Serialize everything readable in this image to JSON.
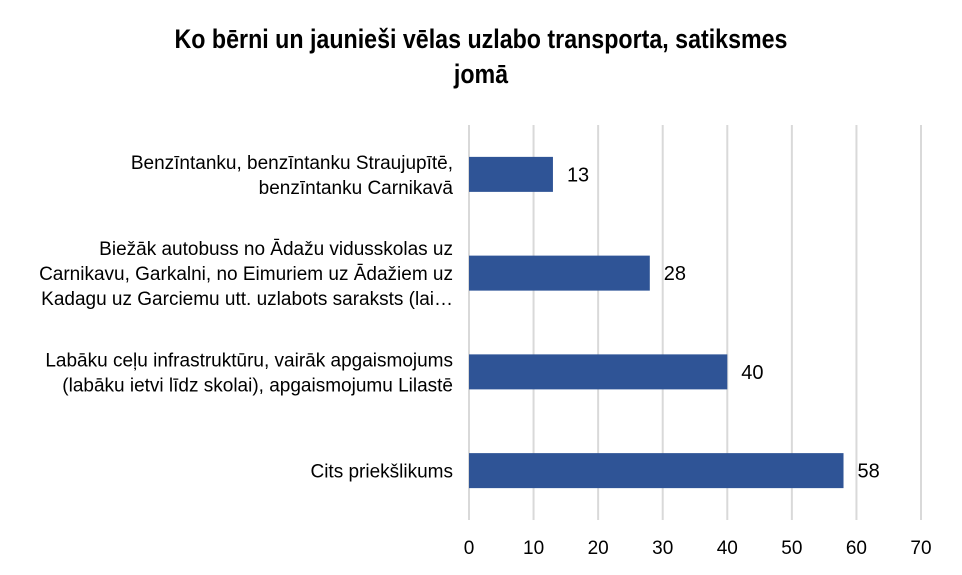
{
  "chart_data": {
    "type": "bar",
    "orientation": "horizontal",
    "title_lines": [
      "Ko bērni un jaunieši vēlas uzlabo transporta, satiksmes",
      "jomā"
    ],
    "categories": [
      [
        "Benzīntanku, benzīntanku Straujupītē,",
        "benzīntanku Carnikavā"
      ],
      [
        "Biežāk autobuss no Ādažu vidusskolas uz",
        "Carnikavu, Garkalni, no Eimuriem uz Ādažiem uz",
        "Kadagu uz Garciemu utt. uzlabots saraksts (lai…"
      ],
      [
        "Labāku ceļu infrastruktūru, vairāk apgaismojums",
        "(labāku ietvi līdz skolai), apgaismojumu Lilastē"
      ],
      [
        "Cits priekšlikums"
      ]
    ],
    "values": [
      13,
      28,
      40,
      58
    ],
    "xlim": [
      0,
      70
    ],
    "xticks": [
      "0",
      "10",
      "20",
      "30",
      "40",
      "50",
      "60",
      "70"
    ],
    "grid": "vertical",
    "legend": "none",
    "bar_color": "#2F5496",
    "grid_color": "#D9D9D9"
  }
}
